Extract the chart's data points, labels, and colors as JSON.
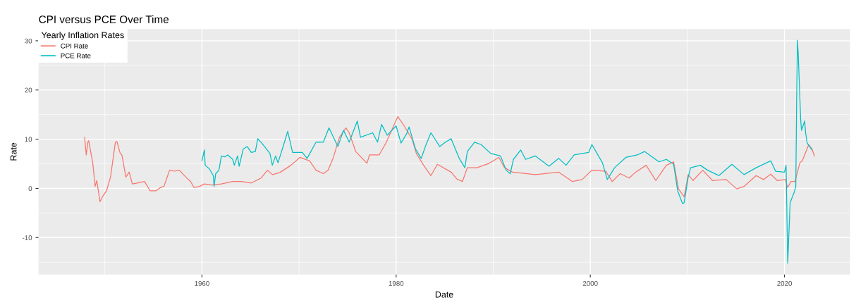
{
  "chart_data": {
    "type": "line",
    "title": "CPI versus PCE Over Time",
    "xlabel": "Date",
    "ylabel": "Rate",
    "legend_title": "Yearly Inflation Rates",
    "legend": "top left",
    "grid": true,
    "xlim": [
      "1943-03",
      "2026-10"
    ],
    "xticks": [
      {
        "value": "1960",
        "label": "1960"
      },
      {
        "value": "1980",
        "label": "1980"
      },
      {
        "value": "2000",
        "label": "2000"
      },
      {
        "value": "2020",
        "label": "2020"
      }
    ],
    "ylim": [
      -17.5,
      32.4
    ],
    "yticks": [
      -10,
      0,
      10,
      20,
      30
    ],
    "series": [
      {
        "name": "CPI Rate",
        "color": "#f8766d",
        "x": [
          "1947-12",
          "1948-02",
          "1948-04",
          "1948-05",
          "1948-10",
          "1949-01",
          "1949-03",
          "1949-07",
          "1949-10",
          "1950-03",
          "1950-08",
          "1951-02",
          "1951-04",
          "1951-08",
          "1951-10",
          "1952-03",
          "1952-07",
          "1952-11",
          "1953-05",
          "1954-02",
          "1954-09",
          "1955-04",
          "1955-10",
          "1956-02",
          "1956-09",
          "1957-03",
          "1957-09",
          "1958-05",
          "1958-11",
          "1959-03",
          "1959-10",
          "1960-04",
          "1961-01",
          "1962-01",
          "1963-03",
          "1964-02",
          "1965-02",
          "1966-02",
          "1966-10",
          "1967-04",
          "1968-01",
          "1969-03",
          "1970-02",
          "1971-02",
          "1971-10",
          "1972-07",
          "1973-01",
          "1973-07",
          "1974-03",
          "1974-11",
          "1975-03",
          "1975-11",
          "1977-01",
          "1977-04",
          "1978-04",
          "1979-01",
          "1980-03",
          "1980-11",
          "1981-09",
          "1982-02",
          "1982-11",
          "1983-08",
          "1984-04",
          "1985-09",
          "1986-04",
          "1986-11",
          "1987-05",
          "1988-05",
          "1989-08",
          "1990-08",
          "1991-03",
          "1992-01",
          "1994-05",
          "1996-10",
          "1998-03",
          "1999-03",
          "2000-03",
          "2001-08",
          "2002-04",
          "2003-02",
          "2004-01",
          "2004-09",
          "2005-10",
          "2006-10",
          "2007-11",
          "2008-08",
          "2009-02",
          "2009-09",
          "2010-02",
          "2010-08",
          "2011-08",
          "2012-08",
          "2014-01",
          "2015-02",
          "2015-11",
          "2017-02",
          "2017-11",
          "2018-08",
          "2019-04",
          "2020-02",
          "2020-05",
          "2020-09",
          "2021-02",
          "2021-08",
          "2021-11",
          "2022-07",
          "2022-11",
          "2023-02"
        ],
        "values": [
          10.4,
          6.8,
          9.4,
          9.7,
          5.2,
          0.4,
          1.6,
          -2.7,
          -1.7,
          -0.5,
          2.3,
          9.4,
          9.5,
          7.1,
          6.8,
          2.3,
          3.3,
          0.9,
          1.1,
          1.4,
          -0.5,
          -0.5,
          0.2,
          0.4,
          3.7,
          3.5,
          3.7,
          2.3,
          1.4,
          0.2,
          0.4,
          0.9,
          0.7,
          0.9,
          1.4,
          1.4,
          1.1,
          2.1,
          3.7,
          2.8,
          3.2,
          4.7,
          6.3,
          5.6,
          3.7,
          3.0,
          3.7,
          6.1,
          10.4,
          12.3,
          11.3,
          7.5,
          5.1,
          6.8,
          6.8,
          9.4,
          14.6,
          12.7,
          9.9,
          7.1,
          4.7,
          2.6,
          4.9,
          3.3,
          1.9,
          1.4,
          4.2,
          4.2,
          5.1,
          6.3,
          4.2,
          3.3,
          2.8,
          3.3,
          1.4,
          1.8,
          3.7,
          3.5,
          1.4,
          3.0,
          2.1,
          3.3,
          4.7,
          1.6,
          4.7,
          5.4,
          -0.1,
          -1.7,
          2.8,
          1.6,
          3.7,
          1.6,
          1.8,
          -0.1,
          0.4,
          2.6,
          1.8,
          2.9,
          1.6,
          1.8,
          0.2,
          1.4,
          1.4,
          5.2,
          5.6,
          8.9,
          8.0,
          6.6
        ]
      },
      {
        "name": "PCE Rate",
        "color": "#00bfc4",
        "x": [
          "1960-01",
          "1960-03",
          "1960-04",
          "1960-05",
          "1960-10",
          "1961-03",
          "1961-04",
          "1961-06",
          "1961-10",
          "1962-01",
          "1962-05",
          "1962-09",
          "1963-03",
          "1963-05",
          "1963-09",
          "1963-11",
          "1964-04",
          "1964-09",
          "1965-02",
          "1965-07",
          "1965-10",
          "1966-04",
          "1967-01",
          "1967-04",
          "1967-08",
          "1967-11",
          "1968-07",
          "1968-11",
          "1969-05",
          "1970-05",
          "1970-11",
          "1971-10",
          "1972-07",
          "1973-02",
          "1974-01",
          "1974-08",
          "1975-03",
          "1976-01",
          "1976-05",
          "1977-08",
          "1978-02",
          "1978-07",
          "1979-02",
          "1980-01",
          "1980-07",
          "1981-02",
          "1981-05",
          "1982-01",
          "1982-08",
          "1983-02",
          "1983-08",
          "1984-07",
          "1985-02",
          "1985-09",
          "1986-07",
          "1987-02",
          "1987-05",
          "1988-02",
          "1988-10",
          "1989-10",
          "1990-10",
          "1991-05",
          "1991-10",
          "1992-02",
          "1992-11",
          "1993-05",
          "1994-05",
          "1995-10",
          "1996-10",
          "1997-07",
          "1998-05",
          "1999-11",
          "2000-03",
          "2001-04",
          "2001-10",
          "2002-07",
          "2003-09",
          "2004-11",
          "2005-08",
          "2007-02",
          "2007-11",
          "2008-08",
          "2009-01",
          "2009-07",
          "2009-09",
          "2010-02",
          "2010-05",
          "2011-05",
          "2012-02",
          "2013-04",
          "2014-08",
          "2015-11",
          "2017-02",
          "2018-08",
          "2019-02",
          "2020-01",
          "2020-03",
          "2020-05",
          "2020-08",
          "2021-01",
          "2021-03",
          "2021-04",
          "2021-05",
          "2021-06",
          "2021-09",
          "2021-10",
          "2022-02",
          "2022-03",
          "2022-05",
          "2022-11"
        ],
        "values": [
          5.6,
          7.1,
          7.8,
          4.7,
          4.0,
          2.6,
          0.4,
          3.0,
          3.7,
          6.6,
          6.4,
          6.8,
          5.9,
          4.7,
          6.6,
          4.5,
          8.0,
          8.5,
          7.3,
          7.5,
          10.1,
          9.0,
          7.1,
          4.7,
          6.6,
          5.2,
          9.4,
          11.6,
          7.3,
          7.3,
          6.1,
          9.4,
          9.4,
          12.3,
          8.5,
          11.8,
          9.4,
          13.7,
          10.4,
          11.3,
          9.4,
          13.0,
          10.8,
          12.7,
          9.2,
          11.1,
          12.5,
          8.0,
          6.1,
          8.9,
          11.3,
          8.5,
          9.4,
          10.1,
          6.1,
          4.2,
          7.5,
          9.4,
          8.9,
          7.1,
          6.6,
          3.7,
          3.0,
          5.9,
          7.8,
          5.9,
          6.6,
          4.5,
          6.1,
          4.7,
          6.8,
          7.3,
          8.9,
          5.2,
          1.8,
          4.2,
          6.3,
          6.8,
          7.5,
          5.4,
          5.9,
          4.9,
          -0.5,
          -3.1,
          -2.9,
          2.3,
          4.2,
          4.7,
          3.7,
          2.6,
          4.9,
          2.8,
          4.2,
          5.6,
          3.5,
          3.3,
          4.7,
          -15.2,
          -2.9,
          -0.8,
          0.4,
          17.5,
          30.1,
          27.4,
          14.1,
          11.8,
          13.7,
          11.5,
          9.2,
          7.8
        ]
      }
    ]
  }
}
